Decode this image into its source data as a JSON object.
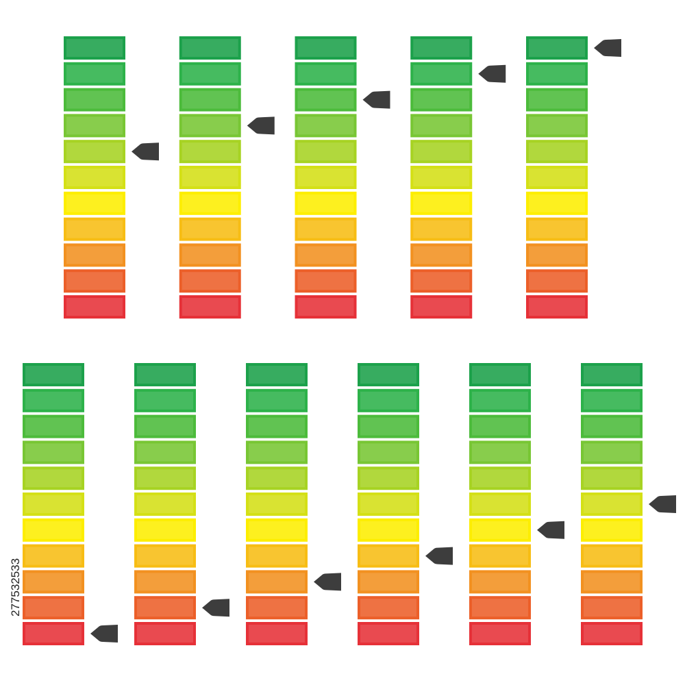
{
  "stock_id": "277532533",
  "segment_colors": [
    "#1ca14b",
    "#2db24a",
    "#4cbb3b",
    "#78c634",
    "#a7d323",
    "#d4e016",
    "#fdee00",
    "#f7bd14",
    "#f29120",
    "#ec5f29",
    "#e63138"
  ],
  "rows": [
    {
      "meters": [
        {
          "level": 6
        },
        {
          "level": 7
        },
        {
          "level": 8
        },
        {
          "level": 9
        },
        {
          "level": 10
        }
      ]
    },
    {
      "meters": [
        {
          "level": 0
        },
        {
          "level": 1
        },
        {
          "level": 2
        },
        {
          "level": 3
        },
        {
          "level": 4
        },
        {
          "level": 5
        }
      ]
    }
  ]
}
